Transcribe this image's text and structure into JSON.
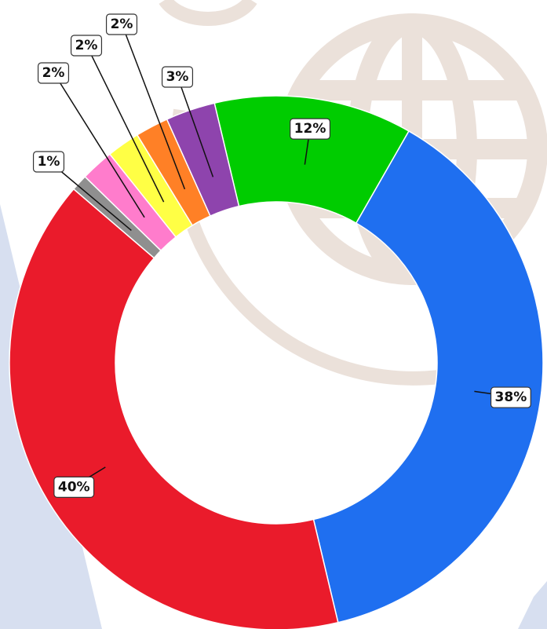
{
  "chart_data": {
    "type": "donut",
    "values": [
      12,
      38,
      40,
      1,
      2,
      2,
      2,
      3
    ],
    "value_labels": [
      "12%",
      "38%",
      "40%",
      "1%",
      "2%",
      "2%",
      "2%",
      "3%"
    ],
    "colors": [
      "#00cc00",
      "#1f6ff0",
      "#ea1b2b",
      "#8f8f8f",
      "#ff7ccc",
      "#ffff45",
      "#ff8026",
      "#8e44ad"
    ]
  }
}
